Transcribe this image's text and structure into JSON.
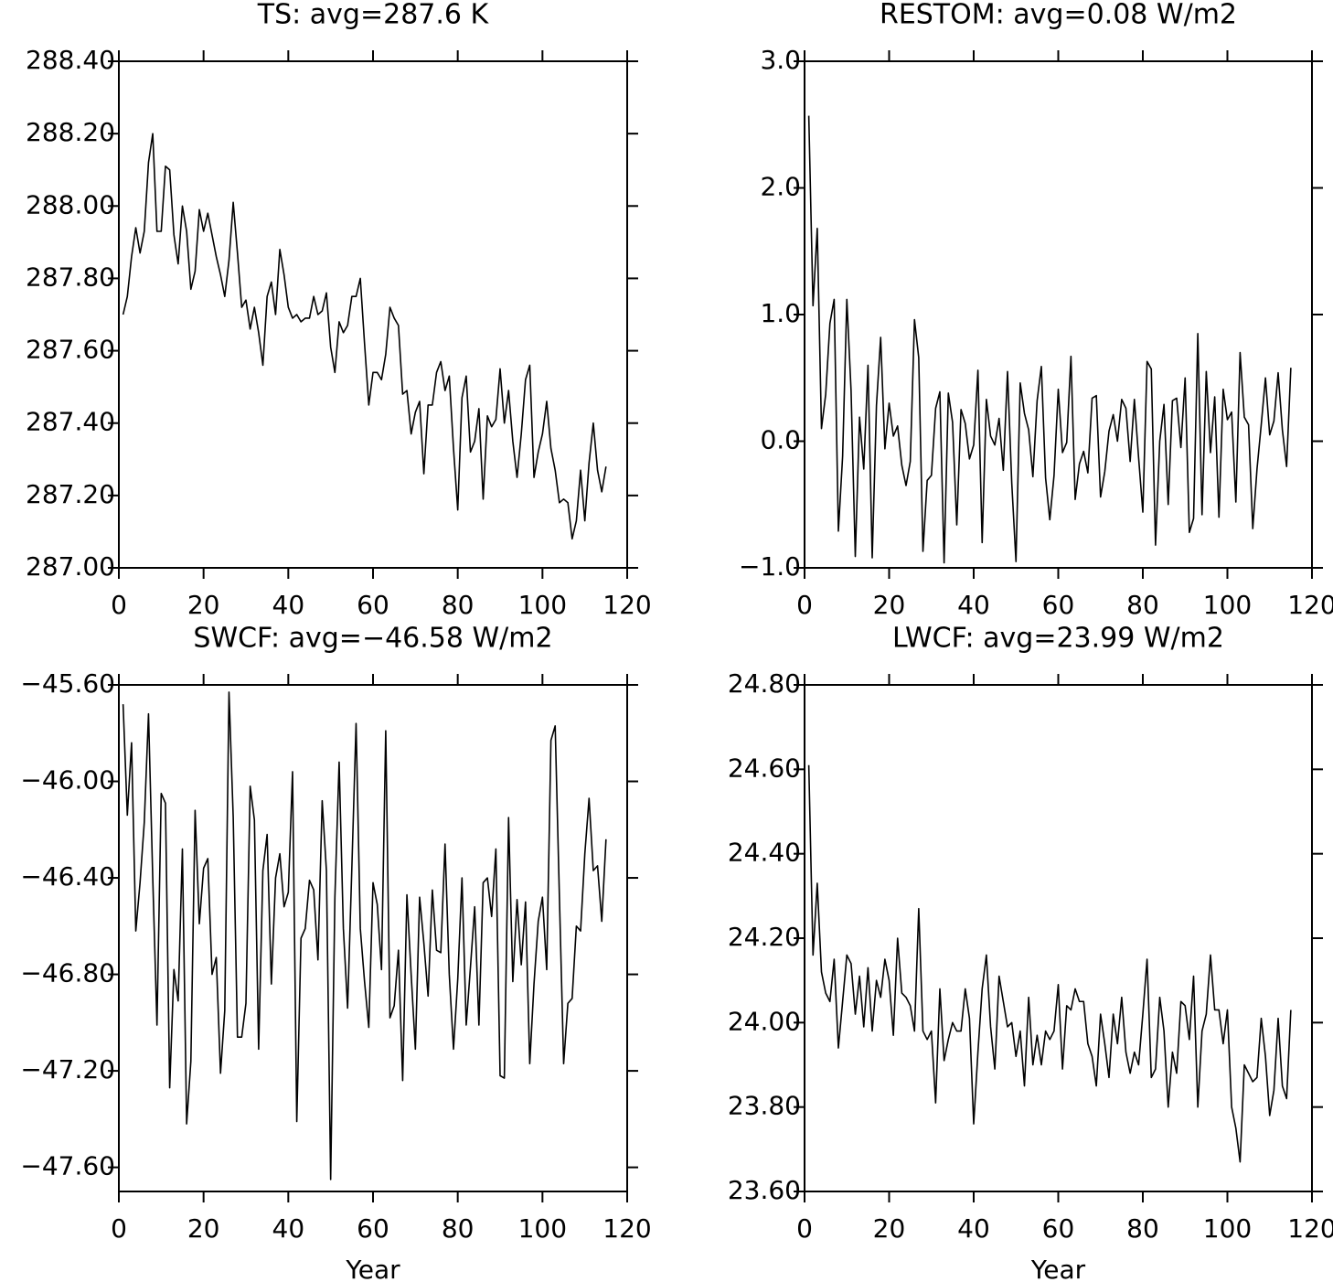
{
  "chart_data": [
    {
      "type": "line",
      "title": "TS: avg=287.6 K",
      "color": "#000000",
      "x": [
        1,
        2,
        3,
        4,
        5,
        6,
        7,
        8,
        9,
        10,
        11,
        12,
        13,
        14,
        15,
        16,
        17,
        18,
        19,
        20,
        21,
        22,
        23,
        24,
        25,
        26,
        27,
        28,
        29,
        30,
        31,
        32,
        33,
        34,
        35,
        36,
        37,
        38,
        39,
        40,
        41,
        42,
        43,
        44,
        45,
        46,
        47,
        48,
        49,
        50,
        51,
        52,
        53,
        54,
        55,
        56,
        57,
        58,
        59,
        60,
        61,
        62,
        63,
        64,
        65,
        66,
        67,
        68,
        69,
        70,
        71,
        72,
        73,
        74,
        75,
        76,
        77,
        78,
        79,
        80,
        81,
        82,
        83,
        84,
        85,
        86,
        87,
        88,
        89,
        90,
        91,
        92,
        93,
        94,
        95,
        96,
        97,
        98,
        99,
        100,
        101,
        102,
        103,
        104,
        105,
        106,
        107,
        108,
        109,
        110,
        111,
        112,
        113,
        114,
        115
      ],
      "values": [
        287.7,
        287.75,
        287.86,
        287.94,
        287.87,
        287.93,
        288.12,
        288.2,
        287.93,
        287.93,
        288.11,
        288.1,
        287.92,
        287.84,
        288.0,
        287.93,
        287.77,
        287.82,
        287.99,
        287.93,
        287.98,
        287.92,
        287.86,
        287.81,
        287.75,
        287.85,
        288.01,
        287.87,
        287.72,
        287.74,
        287.66,
        287.72,
        287.65,
        287.56,
        287.75,
        287.79,
        287.7,
        287.88,
        287.81,
        287.72,
        287.69,
        287.7,
        287.68,
        287.69,
        287.69,
        287.75,
        287.7,
        287.71,
        287.76,
        287.61,
        287.54,
        287.68,
        287.65,
        287.67,
        287.75,
        287.75,
        287.8,
        287.62,
        287.45,
        287.54,
        287.54,
        287.52,
        287.59,
        287.72,
        287.69,
        287.67,
        287.48,
        287.49,
        287.37,
        287.43,
        287.46,
        287.26,
        287.45,
        287.45,
        287.54,
        287.57,
        287.49,
        287.53,
        287.33,
        287.16,
        287.47,
        287.53,
        287.32,
        287.35,
        287.44,
        287.19,
        287.42,
        287.39,
        287.41,
        287.55,
        287.4,
        287.49,
        287.35,
        287.25,
        287.37,
        287.52,
        287.56,
        287.25,
        287.32,
        287.37,
        287.46,
        287.33,
        287.27,
        287.18,
        287.19,
        287.18,
        287.08,
        287.13,
        287.27,
        287.13,
        287.29,
        287.4,
        287.27,
        287.21,
        287.28
      ],
      "xlim": [
        0,
        120
      ],
      "xticks": [
        0,
        20,
        40,
        60,
        80,
        100,
        120
      ],
      "ylim": [
        287.0,
        288.4
      ],
      "yticks": [
        {
          "value": 287.0,
          "label": "287.00"
        },
        {
          "value": 287.2,
          "label": "287.20"
        },
        {
          "value": 287.4,
          "label": "287.40"
        },
        {
          "value": 287.6,
          "label": "287.60"
        },
        {
          "value": 287.8,
          "label": "287.80"
        },
        {
          "value": 288.0,
          "label": "288.00"
        },
        {
          "value": 288.2,
          "label": "288.20"
        },
        {
          "value": 288.4,
          "label": "288.40"
        }
      ]
    },
    {
      "type": "line",
      "title": "RESTOM: avg=0.08 W/m2",
      "color": "#000000",
      "x": [
        1,
        2,
        3,
        4,
        5,
        6,
        7,
        8,
        9,
        10,
        11,
        12,
        13,
        14,
        15,
        16,
        17,
        18,
        19,
        20,
        21,
        22,
        23,
        24,
        25,
        26,
        27,
        28,
        29,
        30,
        31,
        32,
        33,
        34,
        35,
        36,
        37,
        38,
        39,
        40,
        41,
        42,
        43,
        44,
        45,
        46,
        47,
        48,
        49,
        50,
        51,
        52,
        53,
        54,
        55,
        56,
        57,
        58,
        59,
        60,
        61,
        62,
        63,
        64,
        65,
        66,
        67,
        68,
        69,
        70,
        71,
        72,
        73,
        74,
        75,
        76,
        77,
        78,
        79,
        80,
        81,
        82,
        83,
        84,
        85,
        86,
        87,
        88,
        89,
        90,
        91,
        92,
        93,
        94,
        95,
        96,
        97,
        98,
        99,
        100,
        101,
        102,
        103,
        104,
        105,
        106,
        107,
        108,
        109,
        110,
        111,
        112,
        113,
        114,
        115
      ],
      "values": [
        2.57,
        1.07,
        1.68,
        0.1,
        0.37,
        0.93,
        1.12,
        -0.71,
        -0.12,
        1.12,
        0.4,
        -0.91,
        0.19,
        -0.22,
        0.6,
        -0.92,
        0.28,
        0.82,
        -0.06,
        0.3,
        0.04,
        0.12,
        -0.19,
        -0.35,
        -0.16,
        0.96,
        0.66,
        -0.87,
        -0.31,
        -0.27,
        0.26,
        0.39,
        -0.96,
        0.38,
        0.15,
        -0.66,
        0.25,
        0.14,
        -0.14,
        -0.03,
        0.56,
        -0.8,
        0.33,
        0.04,
        -0.03,
        0.18,
        -0.23,
        0.55,
        -0.33,
        -0.95,
        0.46,
        0.22,
        0.09,
        -0.28,
        0.32,
        0.59,
        -0.29,
        -0.62,
        -0.27,
        0.41,
        -0.09,
        -0.01,
        0.67,
        -0.46,
        -0.18,
        -0.08,
        -0.25,
        0.34,
        0.36,
        -0.44,
        -0.24,
        0.08,
        0.21,
        0.0,
        0.33,
        0.26,
        -0.16,
        0.33,
        -0.13,
        -0.56,
        0.63,
        0.57,
        -0.82,
        0.0,
        0.29,
        -0.5,
        0.32,
        0.34,
        -0.05,
        0.5,
        -0.72,
        -0.61,
        0.85,
        -0.58,
        0.55,
        -0.09,
        0.35,
        -0.6,
        0.41,
        0.17,
        0.23,
        -0.48,
        0.7,
        0.19,
        0.13,
        -0.69,
        -0.22,
        0.13,
        0.5,
        0.05,
        0.16,
        0.54,
        0.09,
        -0.2,
        0.58
      ],
      "xlim": [
        0,
        120
      ],
      "xticks": [
        0,
        20,
        40,
        60,
        80,
        100,
        120
      ],
      "ylim": [
        -1.0,
        3.0
      ],
      "yticks": [
        {
          "value": -1.0,
          "label": "−1.0"
        },
        {
          "value": 0.0,
          "label": "0.0"
        },
        {
          "value": 1.0,
          "label": "1.0"
        },
        {
          "value": 2.0,
          "label": "2.0"
        },
        {
          "value": 3.0,
          "label": "3.0"
        }
      ]
    },
    {
      "type": "line",
      "title": "SWCF: avg=−46.58 W/m2",
      "xlabel": "Year",
      "color": "#000000",
      "x": [
        1,
        2,
        3,
        4,
        5,
        6,
        7,
        8,
        9,
        10,
        11,
        12,
        13,
        14,
        15,
        16,
        17,
        18,
        19,
        20,
        21,
        22,
        23,
        24,
        25,
        26,
        27,
        28,
        29,
        30,
        31,
        32,
        33,
        34,
        35,
        36,
        37,
        38,
        39,
        40,
        41,
        42,
        43,
        44,
        45,
        46,
        47,
        48,
        49,
        50,
        51,
        52,
        53,
        54,
        55,
        56,
        57,
        58,
        59,
        60,
        61,
        62,
        63,
        64,
        65,
        66,
        67,
        68,
        69,
        70,
        71,
        72,
        73,
        74,
        75,
        76,
        77,
        78,
        79,
        80,
        81,
        82,
        83,
        84,
        85,
        86,
        87,
        88,
        89,
        90,
        91,
        92,
        93,
        94,
        95,
        96,
        97,
        98,
        99,
        100,
        101,
        102,
        103,
        104,
        105,
        106,
        107,
        108,
        109,
        110,
        111,
        112,
        113,
        114,
        115
      ],
      "values": [
        -45.68,
        -46.14,
        -45.84,
        -46.62,
        -46.42,
        -46.17,
        -45.72,
        -46.4,
        -47.01,
        -46.05,
        -46.09,
        -47.27,
        -46.78,
        -46.91,
        -46.28,
        -47.42,
        -47.16,
        -46.12,
        -46.59,
        -46.36,
        -46.32,
        -46.8,
        -46.73,
        -47.21,
        -46.95,
        -45.63,
        -46.15,
        -47.06,
        -47.06,
        -46.92,
        -46.02,
        -46.16,
        -47.11,
        -46.37,
        -46.22,
        -46.84,
        -46.4,
        -46.3,
        -46.52,
        -46.46,
        -45.96,
        -47.41,
        -46.65,
        -46.61,
        -46.41,
        -46.45,
        -46.74,
        -46.08,
        -46.37,
        -47.65,
        -46.48,
        -45.92,
        -46.61,
        -46.94,
        -46.36,
        -45.76,
        -46.61,
        -46.83,
        -47.02,
        -46.42,
        -46.51,
        -46.78,
        -45.79,
        -46.98,
        -46.93,
        -46.7,
        -47.24,
        -46.47,
        -46.8,
        -47.11,
        -46.48,
        -46.67,
        -46.89,
        -46.45,
        -46.7,
        -46.71,
        -46.26,
        -46.8,
        -47.11,
        -46.82,
        -46.4,
        -47.01,
        -46.77,
        -46.52,
        -47.01,
        -46.42,
        -46.4,
        -46.56,
        -46.28,
        -47.22,
        -47.23,
        -46.15,
        -46.83,
        -46.49,
        -46.76,
        -46.5,
        -47.17,
        -46.84,
        -46.58,
        -46.48,
        -46.78,
        -45.83,
        -45.77,
        -46.48,
        -47.17,
        -46.92,
        -46.9,
        -46.6,
        -46.62,
        -46.3,
        -46.07,
        -46.37,
        -46.35,
        -46.58,
        -46.24
      ],
      "xlim": [
        0,
        120
      ],
      "xticks": [
        0,
        20,
        40,
        60,
        80,
        100,
        120
      ],
      "ylim": [
        -47.7,
        -45.6
      ],
      "yticks": [
        {
          "value": -47.6,
          "label": "−47.60"
        },
        {
          "value": -47.2,
          "label": "−47.20"
        },
        {
          "value": -46.8,
          "label": "−46.80"
        },
        {
          "value": -46.4,
          "label": "−46.40"
        },
        {
          "value": -46.0,
          "label": "−46.00"
        },
        {
          "value": -45.6,
          "label": "−45.60"
        }
      ]
    },
    {
      "type": "line",
      "title": "LWCF: avg=23.99 W/m2",
      "xlabel": "Year",
      "color": "#000000",
      "x": [
        1,
        2,
        3,
        4,
        5,
        6,
        7,
        8,
        9,
        10,
        11,
        12,
        13,
        14,
        15,
        16,
        17,
        18,
        19,
        20,
        21,
        22,
        23,
        24,
        25,
        26,
        27,
        28,
        29,
        30,
        31,
        32,
        33,
        34,
        35,
        36,
        37,
        38,
        39,
        40,
        41,
        42,
        43,
        44,
        45,
        46,
        47,
        48,
        49,
        50,
        51,
        52,
        53,
        54,
        55,
        56,
        57,
        58,
        59,
        60,
        61,
        62,
        63,
        64,
        65,
        66,
        67,
        68,
        69,
        70,
        71,
        72,
        73,
        74,
        75,
        76,
        77,
        78,
        79,
        80,
        81,
        82,
        83,
        84,
        85,
        86,
        87,
        88,
        89,
        90,
        91,
        92,
        93,
        94,
        95,
        96,
        97,
        98,
        99,
        100,
        101,
        102,
        103,
        104,
        105,
        106,
        107,
        108,
        109,
        110,
        111,
        112,
        113,
        114,
        115
      ],
      "values": [
        24.61,
        24.16,
        24.33,
        24.12,
        24.07,
        24.05,
        24.15,
        23.94,
        24.05,
        24.16,
        24.14,
        24.02,
        24.11,
        23.99,
        24.13,
        23.98,
        24.1,
        24.06,
        24.15,
        24.1,
        23.97,
        24.2,
        24.07,
        24.06,
        24.04,
        23.98,
        24.27,
        23.98,
        23.96,
        23.98,
        23.81,
        24.08,
        23.91,
        23.96,
        24.0,
        23.98,
        23.98,
        24.08,
        24.01,
        23.76,
        23.93,
        24.08,
        24.16,
        23.99,
        23.89,
        24.11,
        24.05,
        23.99,
        24.0,
        23.92,
        23.98,
        23.85,
        24.06,
        23.9,
        23.97,
        23.9,
        23.98,
        23.96,
        23.98,
        24.09,
        23.89,
        24.04,
        24.03,
        24.08,
        24.05,
        24.05,
        23.95,
        23.92,
        23.85,
        24.02,
        23.95,
        23.87,
        24.02,
        23.95,
        24.06,
        23.93,
        23.88,
        23.93,
        23.9,
        24.02,
        24.15,
        23.87,
        23.89,
        24.06,
        23.98,
        23.8,
        23.93,
        23.88,
        24.05,
        24.04,
        23.96,
        24.11,
        23.8,
        23.98,
        24.02,
        24.16,
        24.03,
        24.03,
        23.95,
        24.03,
        23.8,
        23.75,
        23.67,
        23.9,
        23.88,
        23.86,
        23.87,
        24.01,
        23.92,
        23.78,
        23.84,
        24.01,
        23.85,
        23.82,
        24.03
      ],
      "xlim": [
        0,
        120
      ],
      "xticks": [
        0,
        20,
        40,
        60,
        80,
        100,
        120
      ],
      "ylim": [
        23.6,
        24.8
      ],
      "yticks": [
        {
          "value": 23.6,
          "label": "23.60"
        },
        {
          "value": 23.8,
          "label": "23.80"
        },
        {
          "value": 24.0,
          "label": "24.00"
        },
        {
          "value": 24.2,
          "label": "24.20"
        },
        {
          "value": 24.4,
          "label": "24.40"
        },
        {
          "value": 24.6,
          "label": "24.60"
        },
        {
          "value": 24.8,
          "label": "24.80"
        }
      ]
    }
  ]
}
